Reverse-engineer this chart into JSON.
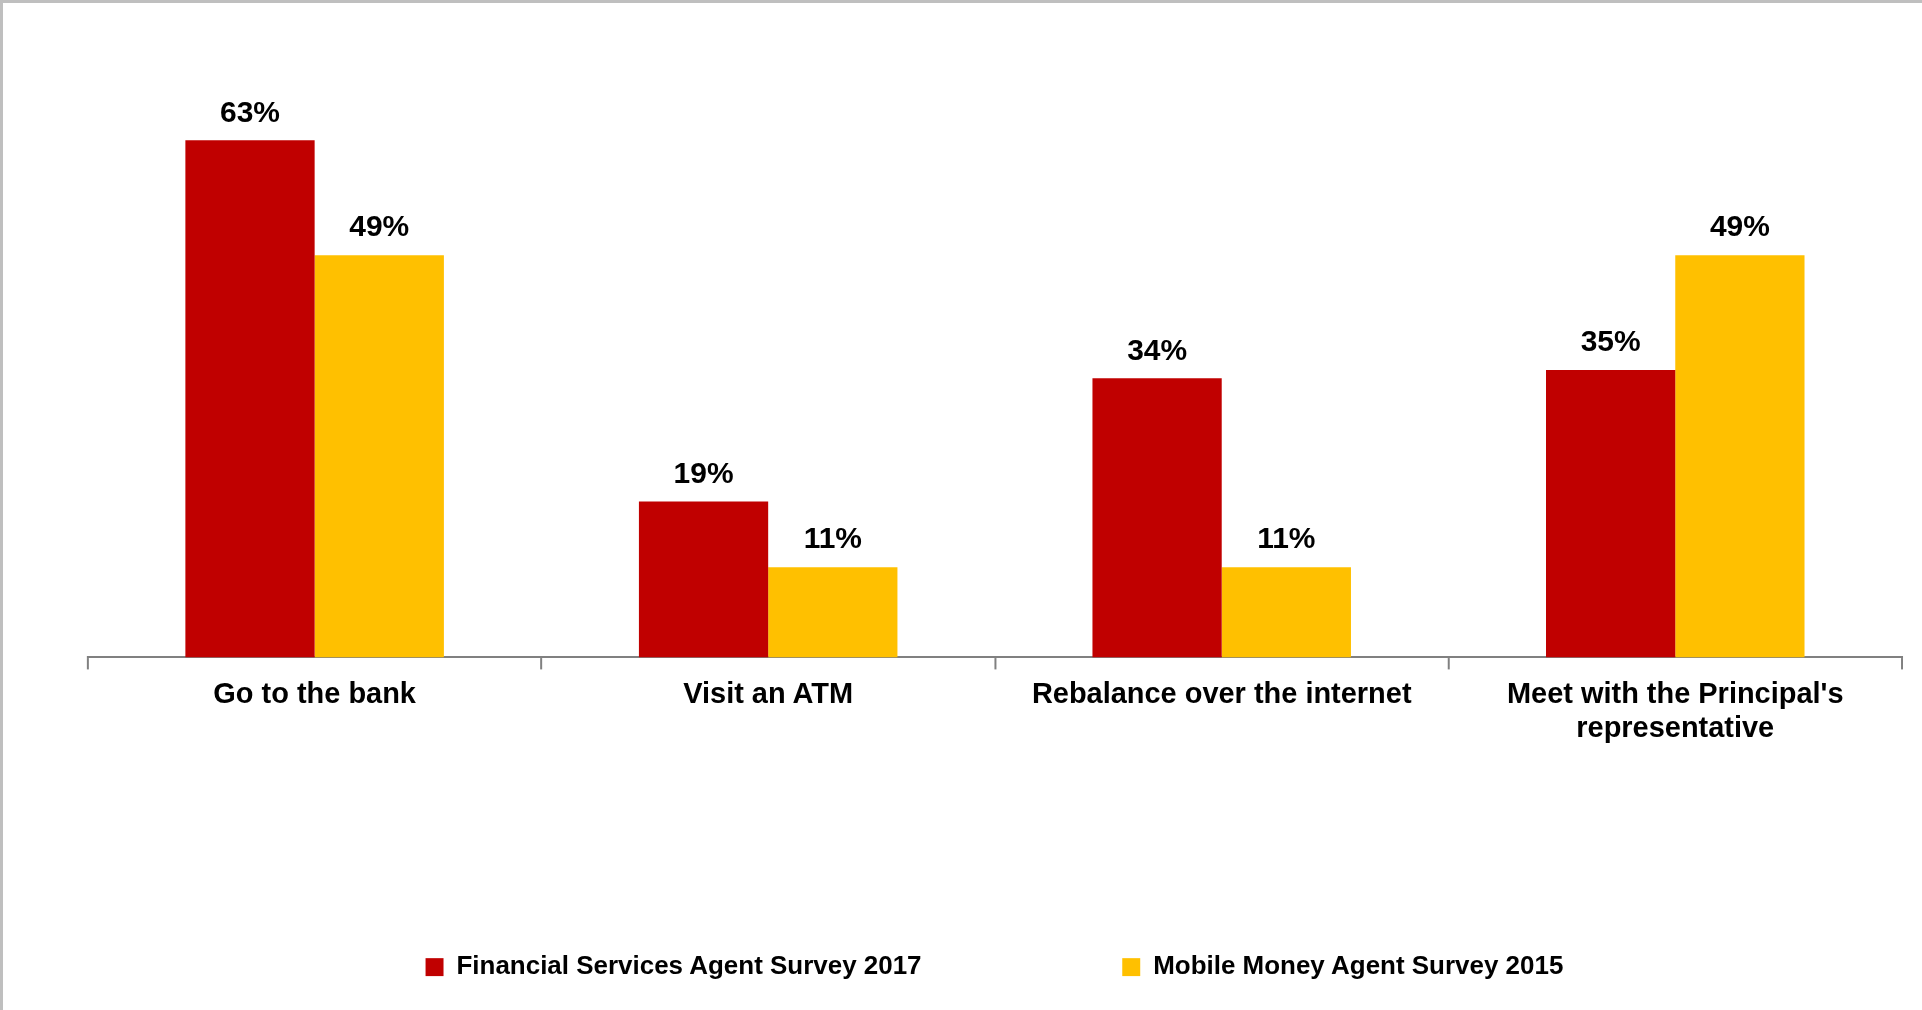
{
  "chart_data": {
    "type": "bar",
    "categories": [
      "Go to the bank",
      "Visit an ATM",
      "Rebalance over the internet",
      "Meet with the Principal's representative"
    ],
    "series": [
      {
        "name": "Financial Services Agent Survey 2017",
        "color": "#c00000",
        "values": [
          63,
          19,
          34,
          35
        ],
        "value_labels": [
          "63%",
          "19%",
          "34%",
          "35%"
        ]
      },
      {
        "name": "Mobile Money Agent Survey 2015",
        "color": "#ffc000",
        "values": [
          49,
          11,
          11,
          49
        ],
        "value_labels": [
          "49%",
          "11%",
          "11%",
          "49%"
        ]
      }
    ],
    "legend": "bottom",
    "grid": false
  }
}
